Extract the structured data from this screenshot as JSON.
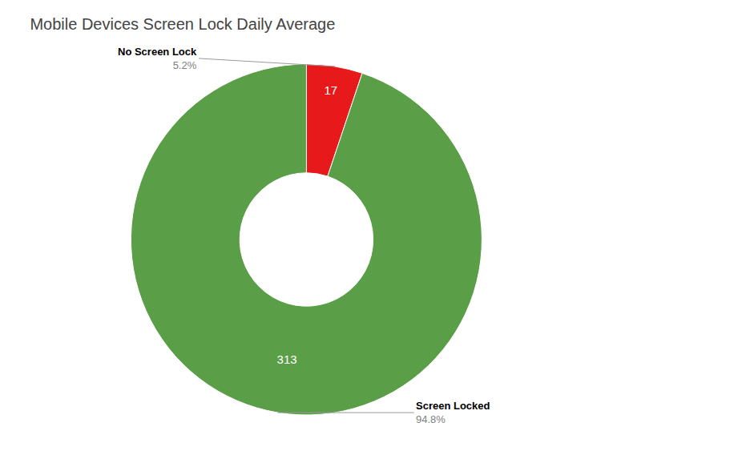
{
  "chart_data": {
    "type": "pie",
    "title": "Mobile Devices Screen Lock Daily Average",
    "categories": [
      "No Screen Lock",
      "Screen Locked"
    ],
    "values": [
      17,
      313
    ],
    "colors": [
      "#e8191a",
      "#5a9e47"
    ],
    "data_labels": true,
    "percentages": [
      5.2,
      94.8
    ],
    "percentage_labels": [
      "5.2%",
      "94.8%"
    ]
  }
}
